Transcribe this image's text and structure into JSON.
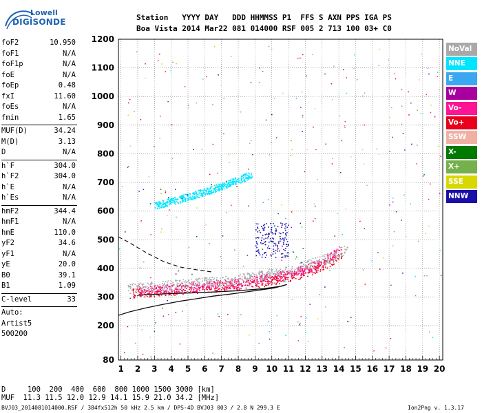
{
  "logo": {
    "line1": "Lowell",
    "line2": "DIGISONDE"
  },
  "header": {
    "row1": "Station   YYYY DAY   DDD HHMMSS P1  FFS S AXN PPS IGA PS",
    "row2": "Boa Vista 2014 Mar22 081 014000 RSF 005 2 713 100 03+ C0"
  },
  "params": {
    "group1": [
      {
        "label": "foF2",
        "value": "10.950"
      },
      {
        "label": "foF1",
        "value": "N/A"
      },
      {
        "label": "foF1p",
        "value": "N/A"
      },
      {
        "label": "foE",
        "value": "N/A"
      },
      {
        "label": "foEp",
        "value": "0.48"
      },
      {
        "label": "fxI",
        "value": "11.60"
      },
      {
        "label": "foEs",
        "value": "N/A"
      },
      {
        "label": "fmin",
        "value": "1.65"
      }
    ],
    "group2": [
      {
        "label": "MUF(D)",
        "value": "34.24"
      },
      {
        "label": "M(D)",
        "value": "3.13"
      },
      {
        "label": "D",
        "value": "N/A"
      }
    ],
    "group3": [
      {
        "label": "h`F",
        "value": "304.0"
      },
      {
        "label": "h`F2",
        "value": "304.0"
      },
      {
        "label": "h`E",
        "value": "N/A"
      },
      {
        "label": "h`Es",
        "value": "N/A"
      }
    ],
    "group4": [
      {
        "label": "hmF2",
        "value": "344.4"
      },
      {
        "label": "hmF1",
        "value": "N/A"
      },
      {
        "label": "hmE",
        "value": "110.0"
      },
      {
        "label": "yF2",
        "value": "34.6"
      },
      {
        "label": "yF1",
        "value": "N/A"
      },
      {
        "label": "yE",
        "value": "20.0"
      },
      {
        "label": "B0",
        "value": "39.1"
      },
      {
        "label": "B1",
        "value": "1.09"
      }
    ],
    "clevel": {
      "label": "C-level",
      "value": "33"
    },
    "auto": "Auto:",
    "artist": "Artist5",
    "code": "500200"
  },
  "legend": [
    {
      "label": "NoVal",
      "color": "#a9a9a9"
    },
    {
      "label": "NNE",
      "color": "#00e5ff"
    },
    {
      "label": "E",
      "color": "#3aa7f0"
    },
    {
      "label": "W",
      "color": "#a8009e"
    },
    {
      "label": "Vo-",
      "color": "#ff1493"
    },
    {
      "label": "Vo+",
      "color": "#e8001c"
    },
    {
      "label": "SSW",
      "color": "#f0b0a4"
    },
    {
      "label": "X-",
      "color": "#007a00"
    },
    {
      "label": "X+",
      "color": "#74b04c"
    },
    {
      "label": "SSE",
      "color": "#d8d800"
    },
    {
      "label": "NNW",
      "color": "#1a10a8"
    }
  ],
  "muf_table": {
    "d_label": "D",
    "d_values": "100  200  400  600  800 1000 1500 3000 [km]",
    "muf_label": "MUF",
    "muf_values": "11.3 11.5 12.0 12.9 14.1 15.9 21.0 34.2 [MHz]"
  },
  "footer": {
    "left": "BVJ03_2014081014000.RSF / 384fx512h 50 kHz 2.5 km / DPS-4D BVJ03 003 / 2.8 N 299.3 E",
    "right": "Ion2Png v. 1.3.17"
  },
  "chart_data": {
    "type": "scatter",
    "x_ticks": [
      1,
      2,
      3,
      4,
      5,
      6,
      7,
      8,
      9,
      10,
      11,
      12,
      13,
      14,
      15,
      16,
      17,
      18,
      19,
      20
    ],
    "y_ticks": [
      80,
      200,
      300,
      400,
      500,
      600,
      700,
      800,
      900,
      1000,
      1100,
      1200
    ],
    "x_range": [
      0.85,
      20.2
    ],
    "y_range": [
      80,
      1200
    ],
    "grid": true,
    "traces": [
      {
        "name": "F2 O-trace",
        "color": "#e8001c",
        "x": [
          1.7,
          2.5,
          3.5,
          4.5,
          5.5,
          6.5,
          7.5,
          8.5,
          9.5,
          10.5,
          11.5,
          12.5,
          13.5,
          14.2
        ],
        "y": [
          315,
          318,
          322,
          326,
          330,
          335,
          340,
          346,
          354,
          364,
          378,
          398,
          425,
          455
        ]
      },
      {
        "name": "F2 X-trace",
        "color": "#ff1493",
        "x": [
          2.0,
          3.0,
          4.0,
          5.0,
          6.0,
          7.0,
          8.0,
          9.0,
          10.0,
          11.0,
          12.0,
          13.0,
          14.0
        ],
        "y": [
          322,
          326,
          330,
          334,
          339,
          344,
          350,
          358,
          368,
          380,
          398,
          420,
          460
        ]
      },
      {
        "name": "multihop",
        "color": "#00e5ff",
        "x": [
          3.0,
          4.0,
          5.0,
          6.0,
          7.0,
          8.0,
          8.8
        ],
        "y": [
          620,
          635,
          650,
          668,
          688,
          710,
          728
        ]
      },
      {
        "name": "W cluster",
        "color": "#1a10a8",
        "x": [
          9.0,
          9.5,
          10.0,
          10.5,
          11.0,
          9.2,
          10.2,
          10.8
        ],
        "y": [
          480,
          500,
          520,
          495,
          470,
          460,
          540,
          510
        ]
      },
      {
        "name": "noval",
        "color": "#a9a9a9",
        "x": [
          1.4,
          2.5,
          3.5,
          4.5,
          5.5,
          6.5,
          7.5,
          8.5,
          9.5,
          10.5,
          11.5,
          12.5,
          13.5,
          14.5
        ],
        "y": [
          330,
          335,
          340,
          345,
          350,
          355,
          360,
          368,
          378,
          390,
          405,
          420,
          440,
          470
        ]
      }
    ],
    "profile_solid": {
      "x": [
        0.85,
        1.5,
        2.5,
        3.5,
        4.5,
        5.5,
        6.5,
        7.5,
        8.5,
        9.5,
        10.2,
        10.9,
        10.6,
        9.5,
        8.0,
        6.0,
        4.0,
        2.5,
        2.0
      ],
      "y": [
        236,
        248,
        262,
        274,
        285,
        294,
        303,
        310,
        318,
        326,
        332,
        344,
        338,
        329,
        322,
        316,
        312,
        308,
        306
      ]
    },
    "profile_dashed": {
      "x": [
        0.85,
        1.5,
        2.5,
        3.5,
        4.5,
        5.5,
        6.5
      ],
      "y": [
        510,
        490,
        455,
        425,
        405,
        395,
        387
      ]
    }
  }
}
